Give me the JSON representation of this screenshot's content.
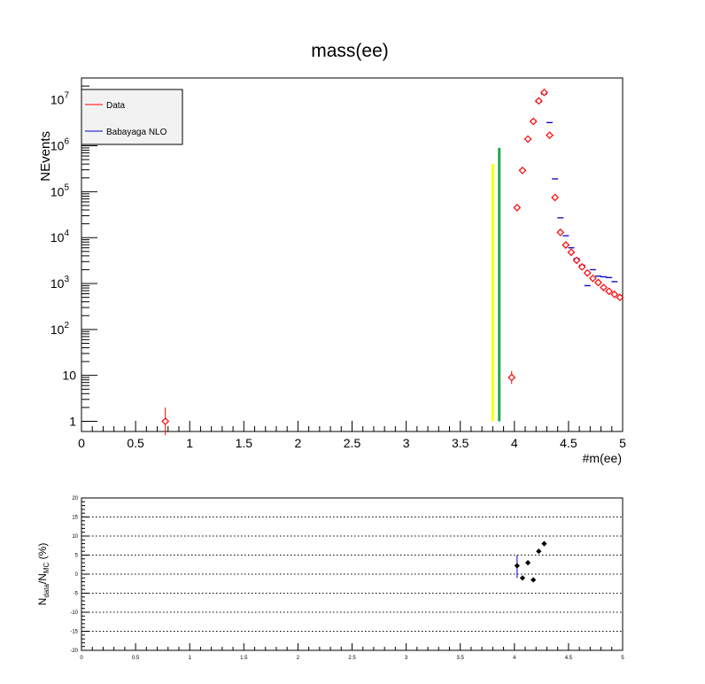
{
  "chart_data": [
    {
      "type": "scatter",
      "title": "mass(ee)",
      "xlabel": "#m(ee)",
      "ylabel": "NEvents",
      "xlim": [
        0,
        5
      ],
      "ylim": [
        0.6,
        30000000
      ],
      "yscale": "log",
      "x_ticks": [
        "0",
        "0.5",
        "1",
        "1.5",
        "2",
        "2.5",
        "3",
        "3.5",
        "4",
        "4.5",
        "5"
      ],
      "y_ticks": [
        {
          "value": 1,
          "label": "1",
          "sup": ""
        },
        {
          "value": 10,
          "label": "10",
          "sup": ""
        },
        {
          "value": 100,
          "label": "10",
          "sup": "2"
        },
        {
          "value": 1000,
          "label": "10",
          "sup": "3"
        },
        {
          "value": 10000,
          "label": "10",
          "sup": "4"
        },
        {
          "value": 100000,
          "label": "10",
          "sup": "5"
        },
        {
          "value": 1000000,
          "label": "10",
          "sup": "6"
        },
        {
          "value": 10000000,
          "label": "10",
          "sup": "7"
        }
      ],
      "legend": {
        "placement": "top-left",
        "entries": [
          {
            "label": "Data",
            "color": "#ff0000"
          },
          {
            "label": "Babayaga NLO",
            "color": "#0000cc"
          }
        ]
      },
      "series": [
        {
          "name": "Data",
          "color": "#ff0000",
          "marker": "open-circle",
          "points": [
            {
              "x": 0.775,
              "y": 1,
              "ylo": 0.5,
              "yhi": 2
            },
            {
              "x": 3.975,
              "y": 9,
              "ylo": 6.5,
              "yhi": 12.5
            },
            {
              "x": 4.025,
              "y": 45000
            },
            {
              "x": 4.075,
              "y": 290000
            },
            {
              "x": 4.125,
              "y": 1400000
            },
            {
              "x": 4.175,
              "y": 3400000
            },
            {
              "x": 4.225,
              "y": 9500000
            },
            {
              "x": 4.275,
              "y": 14500000
            },
            {
              "x": 4.325,
              "y": 1700000
            },
            {
              "x": 4.375,
              "y": 75000
            },
            {
              "x": 4.425,
              "y": 13000
            },
            {
              "x": 4.475,
              "y": 6900
            },
            {
              "x": 4.525,
              "y": 4800
            },
            {
              "x": 4.575,
              "y": 3200
            },
            {
              "x": 4.625,
              "y": 2300
            },
            {
              "x": 4.675,
              "y": 1700
            },
            {
              "x": 4.725,
              "y": 1300
            },
            {
              "x": 4.775,
              "y": 1050
            },
            {
              "x": 4.825,
              "y": 820
            },
            {
              "x": 4.875,
              "y": 680
            },
            {
              "x": 4.925,
              "y": 580
            },
            {
              "x": 4.975,
              "y": 500
            }
          ]
        },
        {
          "name": "Babayaga NLO",
          "color": "#0000cc",
          "marker": "hline",
          "points": [
            {
              "x": 4.025,
              "y": 45000
            },
            {
              "x": 4.075,
              "y": 300000
            },
            {
              "x": 4.125,
              "y": 1400000
            },
            {
              "x": 4.175,
              "y": 3300000
            },
            {
              "x": 4.225,
              "y": 9000000
            },
            {
              "x": 4.275,
              "y": 13500000
            },
            {
              "x": 4.325,
              "y": 3200000
            },
            {
              "x": 4.375,
              "y": 190000
            },
            {
              "x": 4.425,
              "y": 27000
            },
            {
              "x": 4.475,
              "y": 11000
            },
            {
              "x": 4.525,
              "y": 6000
            },
            {
              "x": 4.575,
              "y": 3500
            },
            {
              "x": 4.625,
              "y": 2500
            },
            {
              "x": 4.675,
              "y": 900
            },
            {
              "x": 4.725,
              "y": 2000
            },
            {
              "x": 4.775,
              "y": 1450
            },
            {
              "x": 4.825,
              "y": 1400
            },
            {
              "x": 4.875,
              "y": 1350
            },
            {
              "x": 4.925,
              "y": 1100
            },
            {
              "x": 4.975,
              "y": 500
            }
          ]
        }
      ],
      "vertical_lines": [
        {
          "x": 3.8,
          "ymin": 1,
          "ymax": 400000,
          "color": "#ffff00"
        },
        {
          "x": 3.86,
          "ymin": 1,
          "ymax": 900000,
          "color": "#22aa44"
        }
      ]
    },
    {
      "type": "scatter",
      "title": "",
      "xlabel": "",
      "ylabel": {
        "main": "N",
        "sub1": "data",
        "mid": "/N",
        "sub2": "MC",
        "tail": " (%)"
      },
      "xlim": [
        0,
        5
      ],
      "ylim": [
        -20,
        20
      ],
      "grid": "horizontal-dotted",
      "x_ticks": [
        "0",
        "0.5",
        "1",
        "1.5",
        "2",
        "2.5",
        "3",
        "3.5",
        "4",
        "4.5",
        "5"
      ],
      "y_ticks": [
        "-20",
        "-15",
        "-10",
        "-5",
        "0",
        "5",
        "10",
        "15",
        "20"
      ],
      "series": [
        {
          "color": "#000000",
          "err_color": "#0000cc",
          "points": [
            {
              "x": 4.025,
              "y": 2.2,
              "ylo": -1,
              "yhi": 5
            },
            {
              "x": 4.075,
              "y": -1
            },
            {
              "x": 4.125,
              "y": 3
            },
            {
              "x": 4.175,
              "y": -1.5
            },
            {
              "x": 4.225,
              "y": 6
            },
            {
              "x": 4.275,
              "y": 8
            }
          ]
        }
      ]
    }
  ]
}
